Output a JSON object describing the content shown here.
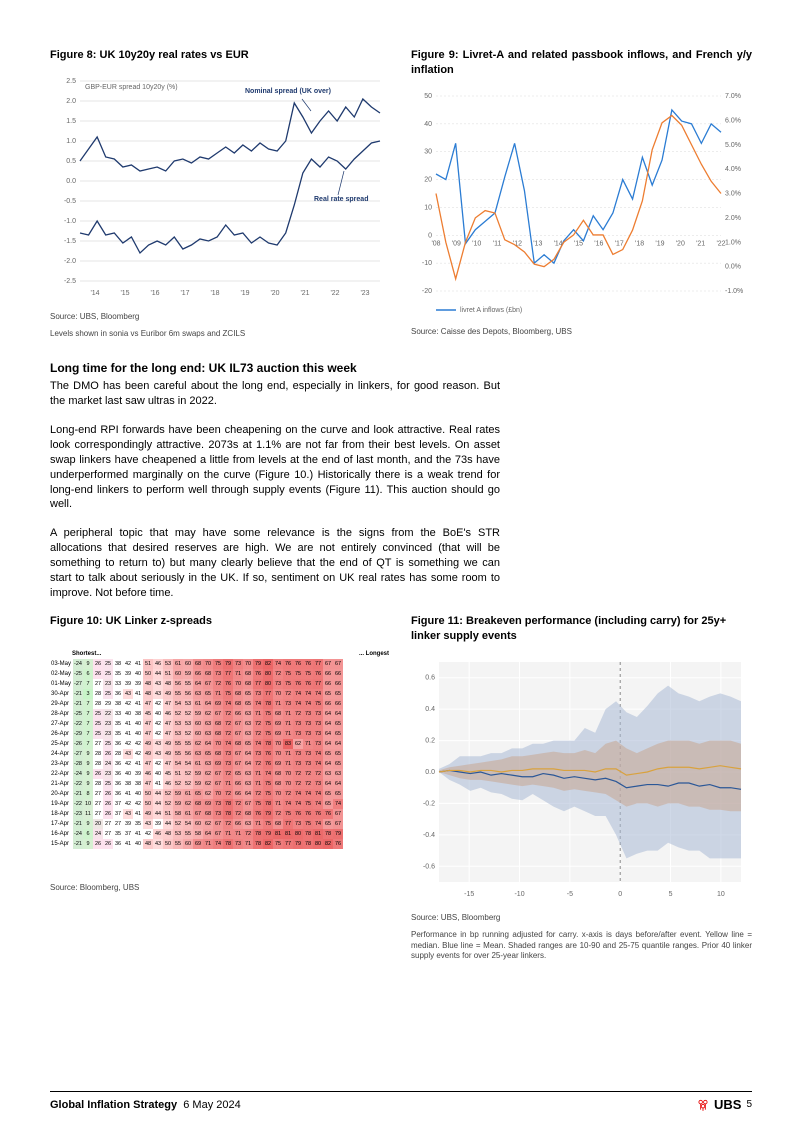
{
  "figure8": {
    "title": "Figure 8: UK 10y20y real rates vs EUR",
    "type": "line",
    "yAxisLabel": "GBP-EUR spread 10y20y (%)",
    "annotation_nominal": "Nominal spread (UK over)",
    "annotation_real": "Real rate spread",
    "x_ticks": [
      "'14",
      "'15",
      "'16",
      "'17",
      "'18",
      "'19",
      "'20",
      "'21",
      "'22",
      "'23"
    ],
    "y_ticks": [
      -2.5,
      -2.0,
      -1.5,
      -1.0,
      -0.5,
      0.0,
      0.5,
      1.0,
      1.5,
      2.0,
      2.5
    ],
    "line_color": "#1f3a6e",
    "grid_color": "#cccccc",
    "background_color": "#ffffff",
    "axis_fontsize": 7,
    "nominal_series": [
      0.5,
      0.8,
      1.1,
      0.6,
      0.55,
      0.35,
      0.4,
      0.25,
      0.3,
      0.35,
      0.25,
      0.5,
      0.55,
      0.45,
      0.6,
      0.55,
      0.7,
      0.85,
      0.7,
      0.9,
      0.75,
      0.95,
      0.8,
      0.75,
      1.0,
      1.95,
      1.6,
      1.2,
      1.5,
      1.75,
      1.5,
      1.85,
      1.6,
      2.05,
      1.85,
      1.7
    ],
    "real_series": [
      -1.3,
      -1.35,
      -1.0,
      -1.35,
      -1.3,
      -1.55,
      -1.4,
      -1.8,
      -1.6,
      -1.5,
      -1.6,
      -1.4,
      -1.7,
      -1.6,
      -1.45,
      -1.5,
      -1.4,
      -1.1,
      -1.35,
      -1.3,
      -1.55,
      -1.4,
      -1.55,
      -1.6,
      -1.3,
      -0.6,
      0.2,
      0.55,
      0.35,
      0.6,
      0.5,
      0.3,
      0.55,
      0.75,
      0.95,
      1.0
    ],
    "source": "Source: UBS, Bloomberg",
    "note": "Levels shown in sonia vs Euribor 6m swaps and ZCILS"
  },
  "figure9": {
    "title": "Figure 9: Livret-A and related passbook inflows, and French y/y inflation",
    "type": "line",
    "x_ticks": [
      "'08",
      "'09",
      "'10",
      "'11",
      "'12",
      "'13",
      "'14",
      "'15",
      "'16",
      "'17",
      "'18",
      "'19",
      "'20",
      "'21",
      "'22"
    ],
    "y_left_ticks": [
      -20,
      -10,
      0,
      10,
      20,
      30,
      40,
      50
    ],
    "y_right_ticks": [
      "-1.0%",
      "0.0%",
      "1.0%",
      "2.0%",
      "3.0%",
      "4.0%",
      "5.0%",
      "6.0%",
      "7.0%"
    ],
    "legend": "livret A inflows (£bn)",
    "line1_color": "#2b7cd3",
    "line2_color": "#ed7d31",
    "grid_color": "#d9d9d9",
    "background_color": "#ffffff",
    "axis_fontsize": 7,
    "inflows_series": [
      22,
      20,
      33,
      -3,
      2,
      5,
      8,
      21,
      33,
      16,
      -10,
      -7,
      -10,
      -2,
      2,
      -2,
      7,
      2,
      8,
      20,
      13,
      28,
      18,
      27,
      45,
      41,
      40,
      33,
      40,
      37
    ],
    "inflation_series": [
      3.0,
      1.0,
      -0.5,
      1.0,
      2.0,
      2.3,
      2.2,
      1.1,
      0.9,
      0.6,
      0.1,
      0.0,
      0.3,
      1.0,
      1.3,
      1.9,
      1.3,
      1.3,
      0.5,
      0.7,
      1.5,
      2.7,
      4.8,
      5.9,
      6.2,
      5.8,
      5.0,
      4.2,
      3.5,
      3.0
    ],
    "source": "Source: Caisse des Depots, Bloomberg, UBS"
  },
  "section2": {
    "title": "Long time for the long end: UK IL73 auction this week",
    "p1": "The DMO has been careful about the long end, especially in linkers, for good reason. But the market last saw ultras in 2022.",
    "p2": "Long-end RPI forwards have been cheapening on the curve and look attractive. Real rates look correspondingly attractive. 2073s at 1.1% are not far from their best levels. On asset swap linkers have cheapened a little from levels at the end of last month, and the 73s have underperformed marginally on the curve (Figure 10.) Historically there is a weak trend for long-end linkers to perform well through supply events (Figure 11). This auction should go well.",
    "p3": "A peripheral topic that may have some relevance is the signs from the BoE's STR allocations that desired reserves are high. We are not entirely convinced (that will be something to return to) but many clearly believe that the end of QT is something we can start to talk about seriously in the UK. If so, sentiment on UK real rates has some room to improve. Not before time."
  },
  "figure10": {
    "title": "Figure 10: UK Linker z-spreads",
    "type": "heatmap",
    "header_left": "Shortest...",
    "header_right": "... Longest",
    "color_low": "#e8f5e9",
    "color_mid": "#ffffff",
    "color_high": "#ef9a9a",
    "color_high2": "#e57373",
    "font_size": 5.5,
    "dates": [
      "03-May",
      "02-May",
      "01-May",
      "30-Apr",
      "29-Apr",
      "28-Apr",
      "27-Apr",
      "26-Apr",
      "25-Apr",
      "24-Apr",
      "23-Apr",
      "22-Apr",
      "21-Apr",
      "20-Apr",
      "19-Apr",
      "18-Apr",
      "17-Apr",
      "16-Apr",
      "15-Apr"
    ],
    "tail": [
      -24,
      -25,
      -27,
      -21,
      -21,
      -25,
      -22,
      -29,
      -26,
      -27,
      -28,
      -24,
      -22,
      -21,
      -22,
      -23,
      -21,
      -24,
      -21
    ],
    "rows": [
      [
        9,
        26,
        25,
        38,
        42,
        41,
        51,
        46,
        53,
        61,
        60,
        68,
        70,
        75,
        79,
        73,
        70,
        79,
        82,
        74,
        76,
        76,
        76,
        77,
        67,
        67
      ],
      [
        6,
        26,
        25,
        35,
        39,
        40,
        50,
        44,
        51,
        60,
        59,
        66,
        68,
        73,
        77,
        71,
        68,
        76,
        80,
        72,
        75,
        75,
        75,
        76,
        66,
        66
      ],
      [
        7,
        27,
        23,
        33,
        39,
        39,
        48,
        43,
        48,
        56,
        55,
        64,
        67,
        72,
        76,
        70,
        68,
        77,
        80,
        73,
        75,
        76,
        76,
        77,
        66,
        66
      ],
      [
        3,
        28,
        25,
        36,
        43,
        41,
        48,
        43,
        49,
        55,
        56,
        63,
        65,
        71,
        75,
        68,
        65,
        73,
        77,
        70,
        72,
        74,
        74,
        74,
        65,
        65
      ],
      [
        7,
        28,
        29,
        38,
        42,
        41,
        47,
        42,
        47,
        54,
        53,
        61,
        64,
        69,
        74,
        68,
        65,
        74,
        78,
        71,
        73,
        74,
        74,
        75,
        66,
        66
      ],
      [
        7,
        25,
        22,
        33,
        40,
        38,
        45,
        40,
        46,
        52,
        52,
        59,
        62,
        67,
        72,
        66,
        63,
        71,
        75,
        68,
        71,
        72,
        73,
        73,
        64,
        64
      ],
      [
        7,
        25,
        23,
        35,
        41,
        40,
        47,
        42,
        47,
        53,
        53,
        60,
        63,
        68,
        72,
        67,
        63,
        72,
        75,
        69,
        71,
        73,
        73,
        73,
        64,
        65
      ],
      [
        7,
        25,
        23,
        35,
        41,
        40,
        47,
        42,
        47,
        53,
        52,
        60,
        63,
        68,
        72,
        67,
        63,
        72,
        75,
        69,
        71,
        73,
        73,
        73,
        64,
        65
      ],
      [
        7,
        27,
        25,
        36,
        42,
        42,
        49,
        43,
        49,
        55,
        55,
        62,
        64,
        70,
        74,
        68,
        65,
        74,
        78,
        70,
        83,
        62,
        71,
        73,
        64,
        64
      ],
      [
        9,
        28,
        26,
        28,
        43,
        42,
        49,
        43,
        49,
        55,
        56,
        63,
        65,
        68,
        73,
        67,
        64,
        73,
        76,
        70,
        71,
        73,
        73,
        74,
        65,
        65
      ],
      [
        9,
        28,
        24,
        36,
        42,
        41,
        47,
        42,
        47,
        54,
        54,
        61,
        63,
        69,
        73,
        67,
        64,
        72,
        76,
        69,
        71,
        73,
        73,
        74,
        64,
        65
      ],
      [
        9,
        26,
        23,
        36,
        40,
        39,
        46,
        40,
        45,
        51,
        52,
        59,
        62,
        67,
        72,
        65,
        63,
        71,
        74,
        68,
        70,
        72,
        72,
        72,
        63,
        63
      ],
      [
        9,
        28,
        25,
        36,
        38,
        38,
        47,
        41,
        46,
        52,
        52,
        59,
        62,
        67,
        71,
        66,
        63,
        71,
        75,
        68,
        70,
        72,
        72,
        73,
        64,
        64
      ],
      [
        8,
        27,
        26,
        36,
        41,
        40,
        50,
        44,
        52,
        59,
        61,
        65,
        62,
        70,
        72,
        66,
        64,
        72,
        75,
        70,
        72,
        74,
        74,
        74,
        65,
        65
      ],
      [
        10,
        27,
        26,
        37,
        42,
        42,
        50,
        44,
        52,
        59,
        62,
        68,
        69,
        73,
        78,
        72,
        67,
        75,
        78,
        71,
        74,
        74,
        75,
        74,
        65,
        74
      ],
      [
        11,
        27,
        26,
        37,
        43,
        41,
        49,
        44,
        51,
        58,
        61,
        67,
        68,
        73,
        78,
        72,
        68,
        76,
        79,
        72,
        75,
        76,
        76,
        76,
        76,
        67
      ],
      [
        9,
        20,
        27,
        27,
        39,
        35,
        43,
        39,
        44,
        52,
        54,
        60,
        62,
        67,
        72,
        66,
        63,
        71,
        75,
        68,
        77,
        73,
        75,
        74,
        65,
        67
      ],
      [
        6,
        24,
        27,
        35,
        37,
        41,
        42,
        46,
        48,
        53,
        55,
        58,
        64,
        67,
        71,
        71,
        72,
        78,
        79,
        81,
        81,
        80,
        78,
        81,
        78,
        79
      ],
      [
        9,
        26,
        26,
        36,
        41,
        40,
        48,
        43,
        50,
        55,
        60,
        69,
        71,
        74,
        78,
        73,
        71,
        78,
        82,
        75,
        77,
        79,
        78,
        80,
        82,
        76
      ]
    ],
    "source": "Source: Bloomberg, UBS"
  },
  "figure11": {
    "title": "Figure 11: Breakeven performance (including carry) for 25y+ linker supply events",
    "type": "area-line",
    "x_ticks": [
      -15,
      -10,
      -5,
      0,
      5,
      10
    ],
    "y_ticks": [
      -0.6,
      -0.4,
      -0.2,
      0.0,
      0.2,
      0.4,
      0.6
    ],
    "background_color": "#f4f4f4",
    "outer_band_color": "#aab9d6",
    "inner_band_color": "#c9a691",
    "mean_color": "#2b5797",
    "median_color": "#d9a23e",
    "grid_color": "#ffffff",
    "zero_line_color": "#888888",
    "axis_fontsize": 7,
    "outer_high": [
      0.02,
      0.05,
      0.1,
      0.1,
      0.1,
      0.12,
      0.12,
      0.15,
      0.15,
      0.18,
      0.18,
      0.2,
      0.2,
      0.2,
      0.28,
      0.25,
      0.4,
      0.45,
      0.38,
      0.35,
      0.42,
      0.5,
      0.55,
      0.5,
      0.48,
      0.45,
      0.48,
      0.5,
      0.48,
      0.45
    ],
    "outer_low": [
      0.0,
      -0.05,
      -0.08,
      -0.12,
      -0.1,
      -0.13,
      -0.14,
      -0.17,
      -0.18,
      -0.14,
      -0.18,
      -0.22,
      -0.25,
      -0.22,
      -0.25,
      -0.28,
      -0.28,
      -0.4,
      -0.55,
      -0.52,
      -0.5,
      -0.5,
      -0.45,
      -0.48,
      -0.5,
      -0.5,
      -0.55,
      -0.55,
      -0.55,
      -0.55
    ],
    "inner_high": [
      0.01,
      0.03,
      0.04,
      0.05,
      0.06,
      0.07,
      0.08,
      0.1,
      0.1,
      0.11,
      0.12,
      0.13,
      0.12,
      0.12,
      0.14,
      0.12,
      0.18,
      0.2,
      0.15,
      0.12,
      0.15,
      0.18,
      0.2,
      0.2,
      0.2,
      0.18,
      0.2,
      0.2,
      0.2,
      0.18
    ],
    "inner_low": [
      0.0,
      -0.02,
      -0.04,
      -0.05,
      -0.05,
      -0.06,
      -0.07,
      -0.08,
      -0.09,
      -0.08,
      -0.09,
      -0.1,
      -0.12,
      -0.11,
      -0.12,
      -0.13,
      -0.14,
      -0.18,
      -0.22,
      -0.2,
      -0.2,
      -0.22,
      -0.2,
      -0.2,
      -0.22,
      -0.22,
      -0.24,
      -0.24,
      -0.25,
      -0.25
    ],
    "mean": [
      0.0,
      0.01,
      0.0,
      -0.01,
      0.0,
      -0.02,
      -0.01,
      -0.02,
      -0.03,
      -0.03,
      -0.01,
      -0.02,
      -0.04,
      -0.03,
      -0.04,
      -0.05,
      -0.04,
      -0.06,
      -0.1,
      -0.09,
      -0.08,
      -0.08,
      -0.09,
      -0.07,
      -0.07,
      -0.09,
      -0.08,
      -0.1,
      -0.1,
      -0.11
    ],
    "median": [
      0.0,
      0.01,
      0.01,
      0.0,
      0.01,
      0.01,
      0.0,
      0.01,
      0.01,
      0.02,
      0.02,
      0.02,
      0.01,
      0.01,
      0.01,
      0.0,
      0.02,
      0.02,
      -0.02,
      -0.01,
      0.0,
      0.02,
      0.03,
      0.03,
      0.03,
      0.02,
      0.03,
      0.04,
      0.03,
      0.02
    ],
    "source": "Source: UBS, Bloomberg",
    "note": "Performance in bp running adjusted for carry. x-axis is days before/after event. Yellow line = median. Blue line = Mean. Shaded ranges are 10-90 and 25-75 quantile ranges. Prior 40 linker supply events for over 25-year linkers."
  },
  "footer": {
    "left_bold": "Global Inflation Strategy",
    "left_date": "6 May 2024",
    "logo": "UBS",
    "page": "5"
  }
}
